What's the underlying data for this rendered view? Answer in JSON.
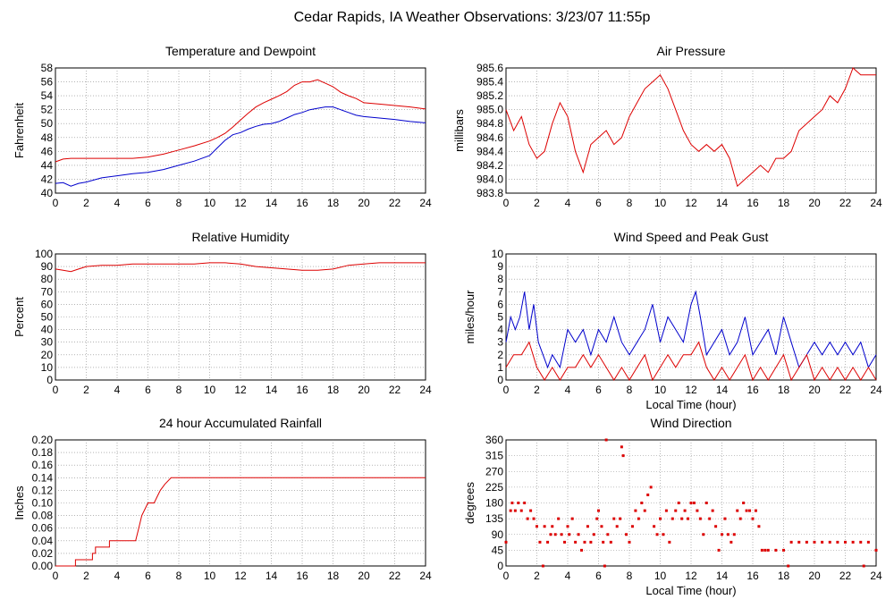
{
  "page_title": "Cedar Rapids, IA Weather Observations: 3/23/07 11:55p",
  "chart_data": [
    {
      "type": "line",
      "title": "Temperature and Dewpoint",
      "xlabel": "",
      "ylabel": "Fahrenheit",
      "xlim": [
        0,
        24
      ],
      "ylim": [
        40,
        58
      ],
      "xticks": [
        0,
        2,
        4,
        6,
        8,
        10,
        12,
        14,
        16,
        18,
        20,
        22,
        24
      ],
      "yticks": [
        40,
        42,
        44,
        46,
        48,
        50,
        52,
        54,
        56,
        58
      ],
      "grid": true,
      "series": [
        {
          "color": "#dd0000",
          "x": [
            0,
            0.5,
            1,
            1.5,
            2,
            3,
            4,
            5,
            6,
            7,
            8,
            9,
            10,
            10.5,
            11,
            11.5,
            12,
            12.5,
            13,
            13.5,
            14,
            14.5,
            15,
            15.5,
            16,
            16.5,
            17,
            17.3,
            17.5,
            18,
            18.5,
            19,
            19.5,
            20,
            21,
            22,
            23,
            24
          ],
          "y": [
            44.5,
            44.9,
            45.0,
            45.0,
            45.0,
            45.0,
            45.0,
            45.0,
            45.2,
            45.6,
            46.2,
            46.8,
            47.5,
            48.0,
            48.6,
            49.5,
            50.5,
            51.5,
            52.4,
            53.0,
            53.5,
            54.0,
            54.6,
            55.5,
            56.0,
            56.0,
            56.3,
            56.0,
            55.8,
            55.3,
            54.5,
            54.0,
            53.6,
            53.0,
            52.8,
            52.6,
            52.4,
            52.1
          ]
        },
        {
          "color": "#0000cc",
          "x": [
            0,
            0.5,
            1,
            1.5,
            2,
            3,
            4,
            5,
            6,
            7,
            8,
            9,
            10,
            10.5,
            11,
            11.5,
            12,
            12.5,
            13,
            13.5,
            14,
            14.5,
            15,
            15.5,
            16,
            16.5,
            17,
            17.5,
            18,
            18.5,
            19,
            19.5,
            20,
            21,
            22,
            23,
            24
          ],
          "y": [
            41.4,
            41.5,
            41.0,
            41.4,
            41.6,
            42.2,
            42.5,
            42.8,
            43.0,
            43.4,
            44.0,
            44.6,
            45.4,
            46.5,
            47.6,
            48.4,
            48.7,
            49.2,
            49.6,
            49.9,
            50.0,
            50.3,
            50.8,
            51.3,
            51.6,
            52.0,
            52.2,
            52.4,
            52.4,
            52.0,
            51.6,
            51.2,
            51.0,
            50.8,
            50.6,
            50.3,
            50.1
          ]
        }
      ]
    },
    {
      "type": "line",
      "title": "Air Pressure",
      "xlabel": "",
      "ylabel": "millibars",
      "xlim": [
        0,
        24
      ],
      "ylim": [
        983.8,
        985.6
      ],
      "xticks": [
        0,
        2,
        4,
        6,
        8,
        10,
        12,
        14,
        16,
        18,
        20,
        22,
        24
      ],
      "yticks": [
        "983.8",
        "984.0",
        "984.2",
        "984.4",
        "984.6",
        "984.8",
        "985.0",
        "985.2",
        "985.4",
        "985.6"
      ],
      "grid": true,
      "series": [
        {
          "color": "#dd0000",
          "x": [
            0,
            0.5,
            1,
            1.5,
            2,
            2.5,
            3,
            3.5,
            4,
            4.5,
            5,
            5.5,
            6,
            6.5,
            7,
            7.5,
            8,
            8.5,
            9,
            9.5,
            10,
            10.5,
            11,
            11.5,
            12,
            12.5,
            13,
            13.5,
            14,
            14.5,
            15,
            15.5,
            16,
            16.5,
            17,
            17.5,
            18,
            18.5,
            19,
            19.5,
            20,
            20.5,
            21,
            21.5,
            22,
            22.5,
            23,
            23.5,
            24
          ],
          "y": [
            985.0,
            984.7,
            984.9,
            984.5,
            984.3,
            984.4,
            984.8,
            985.1,
            984.9,
            984.4,
            984.1,
            984.5,
            984.6,
            984.7,
            984.5,
            984.6,
            984.9,
            985.1,
            985.3,
            985.4,
            985.5,
            985.3,
            985.0,
            984.7,
            984.5,
            984.4,
            984.5,
            984.4,
            984.5,
            984.3,
            983.9,
            984.0,
            984.1,
            984.2,
            984.1,
            984.3,
            984.3,
            984.4,
            984.7,
            984.8,
            984.9,
            985.0,
            985.2,
            985.1,
            985.3,
            985.6,
            985.5,
            985.5,
            985.5
          ]
        }
      ]
    },
    {
      "type": "line",
      "title": "Relative Humidity",
      "xlabel": "",
      "ylabel": "Percent",
      "xlim": [
        0,
        24
      ],
      "ylim": [
        0,
        100
      ],
      "xticks": [
        0,
        2,
        4,
        6,
        8,
        10,
        12,
        14,
        16,
        18,
        20,
        22,
        24
      ],
      "yticks": [
        0,
        10,
        20,
        30,
        40,
        50,
        60,
        70,
        80,
        90,
        100
      ],
      "grid": true,
      "series": [
        {
          "color": "#dd0000",
          "x": [
            0,
            0.5,
            1,
            1.5,
            2,
            3,
            4,
            5,
            6,
            7,
            8,
            9,
            10,
            11,
            12,
            13,
            14,
            15,
            16,
            17,
            18,
            19,
            20,
            21,
            22,
            23,
            24
          ],
          "y": [
            88,
            87,
            86,
            88,
            90,
            91,
            91,
            92,
            92,
            92,
            92,
            92,
            93,
            93,
            92,
            90,
            89,
            88,
            87,
            87,
            88,
            91,
            92,
            93,
            93,
            93,
            93
          ]
        }
      ]
    },
    {
      "type": "line",
      "title": "Wind Speed and Peak Gust",
      "xlabel": "Local Time (hour)",
      "ylabel": "miles/hour",
      "xlim": [
        0,
        24
      ],
      "ylim": [
        0,
        10
      ],
      "xticks": [
        0,
        2,
        4,
        6,
        8,
        10,
        12,
        14,
        16,
        18,
        20,
        22,
        24
      ],
      "yticks": [
        0,
        1,
        2,
        3,
        4,
        5,
        6,
        7,
        8,
        9,
        10
      ],
      "grid": true,
      "series": [
        {
          "color": "#0000cc",
          "x": [
            0,
            0.3,
            0.6,
            0.9,
            1.2,
            1.5,
            1.8,
            2.1,
            2.4,
            2.7,
            3,
            3.5,
            4,
            4.5,
            5,
            5.5,
            6,
            6.5,
            7,
            7.5,
            8,
            8.5,
            9,
            9.5,
            10,
            10.5,
            11,
            11.5,
            12,
            12.3,
            12.6,
            13,
            13.5,
            14,
            14.5,
            15,
            15.5,
            16,
            16.5,
            17,
            17.5,
            18,
            18.5,
            19,
            19.5,
            20,
            20.5,
            21,
            21.5,
            22,
            22.5,
            23,
            23.5,
            24
          ],
          "y": [
            3,
            5,
            4,
            5,
            7,
            4,
            6,
            3,
            2,
            1,
            2,
            1,
            4,
            3,
            4,
            2,
            4,
            3,
            5,
            3,
            2,
            3,
            4,
            6,
            3,
            5,
            4,
            3,
            6,
            7,
            5,
            2,
            3,
            4,
            2,
            3,
            5,
            2,
            3,
            4,
            2,
            5,
            3,
            1,
            2,
            3,
            2,
            3,
            2,
            3,
            2,
            3,
            1,
            2
          ]
        },
        {
          "color": "#dd0000",
          "x": [
            0,
            0.5,
            1,
            1.5,
            2,
            2.5,
            3,
            3.5,
            4,
            4.5,
            5,
            5.5,
            6,
            6.5,
            7,
            7.5,
            8,
            8.5,
            9,
            9.5,
            10,
            10.5,
            11,
            11.5,
            12,
            12.5,
            13,
            13.5,
            14,
            14.5,
            15,
            15.5,
            16,
            16.5,
            17,
            17.5,
            18,
            18.5,
            19,
            19.5,
            20,
            20.5,
            21,
            21.5,
            22,
            22.5,
            23,
            23.5,
            24
          ],
          "y": [
            1,
            2,
            2,
            3,
            1,
            0,
            1,
            0,
            1,
            1,
            2,
            1,
            2,
            1,
            0,
            1,
            0,
            1,
            2,
            0,
            1,
            2,
            1,
            2,
            2,
            3,
            1,
            0,
            1,
            0,
            1,
            2,
            0,
            1,
            0,
            1,
            2,
            0,
            1,
            2,
            0,
            1,
            0,
            1,
            0,
            1,
            0,
            1,
            0
          ]
        }
      ]
    },
    {
      "type": "line",
      "title": "24 hour Accumulated Rainfall",
      "xlabel": "",
      "ylabel": "Inches",
      "xlim": [
        0,
        24
      ],
      "ylim": [
        0,
        0.2
      ],
      "xticks": [
        0,
        2,
        4,
        6,
        8,
        10,
        12,
        14,
        16,
        18,
        20,
        22,
        24
      ],
      "yticks": [
        "0.00",
        "0.02",
        "0.04",
        "0.06",
        "0.08",
        "0.10",
        "0.12",
        "0.14",
        "0.16",
        "0.18",
        "0.20"
      ],
      "grid": true,
      "series": [
        {
          "color": "#dd0000",
          "x": [
            0,
            1.3,
            1.3,
            2.4,
            2.4,
            2.6,
            2.6,
            3.5,
            3.5,
            5.2,
            5.4,
            5.6,
            5.8,
            6.0,
            6.4,
            6.6,
            6.8,
            7.1,
            7.5,
            24
          ],
          "y": [
            0,
            0,
            0.01,
            0.01,
            0.02,
            0.02,
            0.03,
            0.03,
            0.04,
            0.04,
            0.06,
            0.08,
            0.09,
            0.1,
            0.1,
            0.11,
            0.12,
            0.13,
            0.14,
            0.14
          ]
        }
      ]
    },
    {
      "type": "scatter",
      "title": "Wind Direction",
      "xlabel": "Local Time (hour)",
      "ylabel": "degrees",
      "xlim": [
        0,
        24
      ],
      "ylim": [
        0,
        360
      ],
      "xticks": [
        0,
        2,
        4,
        6,
        8,
        10,
        12,
        14,
        16,
        18,
        20,
        22,
        24
      ],
      "yticks": [
        0,
        45,
        90,
        135,
        180,
        225,
        270,
        315,
        360
      ],
      "grid": true,
      "series": [
        {
          "color": "#dd0000",
          "x": [
            0,
            0.3,
            0.4,
            0.6,
            0.8,
            1.0,
            1.2,
            1.4,
            1.6,
            1.8,
            2.0,
            2.2,
            2.4,
            2.5,
            2.7,
            2.9,
            3.0,
            3.2,
            3.4,
            3.6,
            3.8,
            4.0,
            4.1,
            4.3,
            4.5,
            4.7,
            4.9,
            5.1,
            5.3,
            5.5,
            5.7,
            5.9,
            6.0,
            6.2,
            6.3,
            6.4,
            6.5,
            6.6,
            6.8,
            7.0,
            7.2,
            7.4,
            7.5,
            7.6,
            7.8,
            8.0,
            8.2,
            8.4,
            8.6,
            8.8,
            9.0,
            9.2,
            9.4,
            9.6,
            9.8,
            10.0,
            10.2,
            10.4,
            10.6,
            10.8,
            11.0,
            11.2,
            11.4,
            11.6,
            11.8,
            12.0,
            12.2,
            12.4,
            12.6,
            12.8,
            13.0,
            13.2,
            13.4,
            13.6,
            13.8,
            14.0,
            14.2,
            14.4,
            14.6,
            14.8,
            15.0,
            15.2,
            15.4,
            15.6,
            15.8,
            16.0,
            16.2,
            16.4,
            16.6,
            16.8,
            17.0,
            17.5,
            18.0,
            18.3,
            18.5,
            19,
            19.5,
            20,
            20.5,
            21,
            21.5,
            22,
            22.5,
            23,
            23.2,
            23.5,
            24
          ],
          "y": [
            68,
            158,
            180,
            158,
            180,
            158,
            180,
            135,
            158,
            135,
            113,
            68,
            0,
            113,
            68,
            90,
            113,
            90,
            135,
            90,
            68,
            113,
            90,
            135,
            68,
            90,
            45,
            68,
            113,
            68,
            90,
            135,
            158,
            113,
            68,
            0,
            360,
            90,
            68,
            135,
            113,
            135,
            340,
            315,
            90,
            68,
            113,
            158,
            135,
            180,
            158,
            203,
            225,
            113,
            90,
            135,
            90,
            158,
            68,
            135,
            158,
            180,
            135,
            158,
            135,
            180,
            180,
            158,
            135,
            90,
            180,
            135,
            158,
            113,
            45,
            90,
            135,
            90,
            68,
            90,
            158,
            135,
            180,
            158,
            158,
            135,
            158,
            113,
            45,
            45,
            45,
            45,
            45,
            0,
            68,
            68,
            68,
            68,
            68,
            68,
            68,
            68,
            68,
            68,
            0,
            68,
            45
          ]
        }
      ]
    }
  ]
}
